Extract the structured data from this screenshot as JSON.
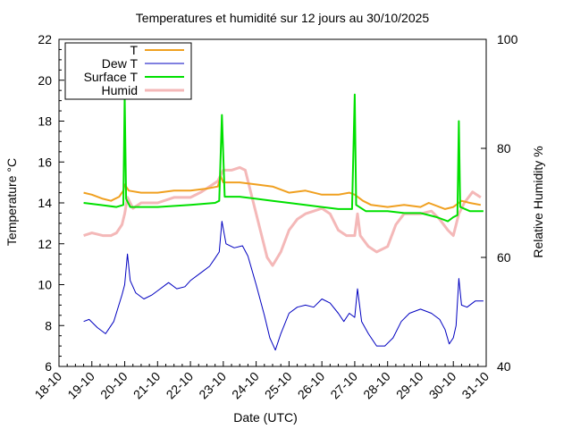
{
  "chart_data": {
    "type": "line",
    "title": "Temperatures et humidité sur 12 jours au 30/10/2025",
    "xlabel": "Date (UTC)",
    "ylabel": "Temperature °C",
    "y2label": "Relative Humidity %",
    "x_range": [
      "2025-10-18",
      "2025-10-31"
    ],
    "ylim": [
      6,
      22
    ],
    "y2lim": [
      40,
      100
    ],
    "y_ticks": [
      "6",
      "8",
      "10",
      "12",
      "14",
      "16",
      "18",
      "20",
      "22"
    ],
    "y2_ticks": [
      "40",
      "60",
      "80",
      "100"
    ],
    "x_ticks": [
      "18-10",
      "19-10",
      "20-10",
      "21-10",
      "22-10",
      "23-10",
      "24-10",
      "25-10",
      "26-10",
      "27-10",
      "28-10",
      "29-10",
      "30-10",
      "31-10"
    ],
    "legend_position": "top-left",
    "series": [
      {
        "name": "T",
        "axis": "left",
        "color": "#f0a020",
        "points": [
          [
            "2025-10-18 18:00",
            14.5
          ],
          [
            "2025-10-19 00:00",
            14.4
          ],
          [
            "2025-10-19 08:00",
            14.2
          ],
          [
            "2025-10-19 14:00",
            14.1
          ],
          [
            "2025-10-19 20:00",
            14.3
          ],
          [
            "2025-10-19 23:00",
            14.6
          ],
          [
            "2025-10-20 00:00",
            14.9
          ],
          [
            "2025-10-20 03:00",
            14.6
          ],
          [
            "2025-10-20 12:00",
            14.5
          ],
          [
            "2025-10-21 00:00",
            14.5
          ],
          [
            "2025-10-21 12:00",
            14.6
          ],
          [
            "2025-10-22 00:00",
            14.6
          ],
          [
            "2025-10-22 12:00",
            14.7
          ],
          [
            "2025-10-22 20:00",
            14.8
          ],
          [
            "2025-10-22 22:00",
            15.3
          ],
          [
            "2025-10-23 00:00",
            15.0
          ],
          [
            "2025-10-23 12:00",
            15.0
          ],
          [
            "2025-10-24 00:00",
            14.9
          ],
          [
            "2025-10-24 12:00",
            14.8
          ],
          [
            "2025-10-25 00:00",
            14.5
          ],
          [
            "2025-10-25 12:00",
            14.6
          ],
          [
            "2025-10-26 00:00",
            14.4
          ],
          [
            "2025-10-26 12:00",
            14.4
          ],
          [
            "2025-10-26 20:00",
            14.5
          ],
          [
            "2025-10-27 00:00",
            14.4
          ],
          [
            "2025-10-27 06:00",
            14.1
          ],
          [
            "2025-10-27 12:00",
            13.9
          ],
          [
            "2025-10-28 00:00",
            13.8
          ],
          [
            "2025-10-28 12:00",
            13.9
          ],
          [
            "2025-10-29 00:00",
            13.8
          ],
          [
            "2025-10-29 06:00",
            14.0
          ],
          [
            "2025-10-29 18:00",
            13.7
          ],
          [
            "2025-10-30 00:00",
            13.8
          ],
          [
            "2025-10-30 02:00",
            13.9
          ],
          [
            "2025-10-30 06:00",
            14.1
          ],
          [
            "2025-10-30 12:00",
            14.0
          ],
          [
            "2025-10-30 20:00",
            13.9
          ]
        ]
      },
      {
        "name": "Dew T",
        "axis": "left",
        "color": "#0000c0",
        "points": [
          [
            "2025-10-18 18:00",
            8.2
          ],
          [
            "2025-10-18 22:00",
            8.3
          ],
          [
            "2025-10-19 04:00",
            7.9
          ],
          [
            "2025-10-19 10:00",
            7.6
          ],
          [
            "2025-10-19 12:00",
            7.8
          ],
          [
            "2025-10-19 16:00",
            8.2
          ],
          [
            "2025-10-19 22:00",
            9.5
          ],
          [
            "2025-10-20 00:00",
            10.0
          ],
          [
            "2025-10-20 02:00",
            11.5
          ],
          [
            "2025-10-20 04:00",
            10.2
          ],
          [
            "2025-10-20 08:00",
            9.6
          ],
          [
            "2025-10-20 14:00",
            9.3
          ],
          [
            "2025-10-20 20:00",
            9.5
          ],
          [
            "2025-10-21 00:00",
            9.7
          ],
          [
            "2025-10-21 08:00",
            10.1
          ],
          [
            "2025-10-21 14:00",
            9.8
          ],
          [
            "2025-10-21 20:00",
            9.9
          ],
          [
            "2025-10-22 00:00",
            10.2
          ],
          [
            "2025-10-22 08:00",
            10.6
          ],
          [
            "2025-10-22 14:00",
            10.9
          ],
          [
            "2025-10-22 18:00",
            11.3
          ],
          [
            "2025-10-22 21:00",
            11.6
          ],
          [
            "2025-10-22 23:00",
            13.1
          ],
          [
            "2025-10-23 02:00",
            12.0
          ],
          [
            "2025-10-23 08:00",
            11.8
          ],
          [
            "2025-10-23 14:00",
            11.9
          ],
          [
            "2025-10-23 18:00",
            11.4
          ],
          [
            "2025-10-24 00:00",
            10.0
          ],
          [
            "2025-10-24 06:00",
            8.5
          ],
          [
            "2025-10-24 10:00",
            7.4
          ],
          [
            "2025-10-24 14:00",
            6.8
          ],
          [
            "2025-10-24 18:00",
            7.6
          ],
          [
            "2025-10-25 00:00",
            8.6
          ],
          [
            "2025-10-25 06:00",
            8.9
          ],
          [
            "2025-10-25 12:00",
            9.0
          ],
          [
            "2025-10-25 18:00",
            8.9
          ],
          [
            "2025-10-26 00:00",
            9.3
          ],
          [
            "2025-10-26 06:00",
            9.1
          ],
          [
            "2025-10-26 12:00",
            8.6
          ],
          [
            "2025-10-26 16:00",
            8.2
          ],
          [
            "2025-10-26 20:00",
            8.6
          ],
          [
            "2025-10-27 00:00",
            8.4
          ],
          [
            "2025-10-27 02:00",
            9.8
          ],
          [
            "2025-10-27 05:00",
            8.2
          ],
          [
            "2025-10-27 10:00",
            7.6
          ],
          [
            "2025-10-27 16:00",
            7.0
          ],
          [
            "2025-10-27 22:00",
            7.0
          ],
          [
            "2025-10-28 04:00",
            7.4
          ],
          [
            "2025-10-28 10:00",
            8.2
          ],
          [
            "2025-10-28 16:00",
            8.6
          ],
          [
            "2025-10-29 00:00",
            8.8
          ],
          [
            "2025-10-29 08:00",
            8.6
          ],
          [
            "2025-10-29 14:00",
            8.3
          ],
          [
            "2025-10-29 18:00",
            7.8
          ],
          [
            "2025-10-29 21:00",
            7.1
          ],
          [
            "2025-10-30 00:00",
            7.4
          ],
          [
            "2025-10-30 02:00",
            8.0
          ],
          [
            "2025-10-30 04:00",
            10.3
          ],
          [
            "2025-10-30 06:00",
            9.0
          ],
          [
            "2025-10-30 10:00",
            8.9
          ],
          [
            "2025-10-30 16:00",
            9.2
          ],
          [
            "2025-10-30 22:00",
            9.2
          ]
        ]
      },
      {
        "name": "Surface T",
        "axis": "left",
        "color": "#00e000",
        "points": [
          [
            "2025-10-18 18:00",
            14.0
          ],
          [
            "2025-10-19 06:00",
            13.9
          ],
          [
            "2025-10-19 18:00",
            13.8
          ],
          [
            "2025-10-19 23:00",
            13.9
          ],
          [
            "2025-10-20 00:00",
            19.2
          ],
          [
            "2025-10-20 01:00",
            14.2
          ],
          [
            "2025-10-20 04:00",
            13.8
          ],
          [
            "2025-10-21 00:00",
            13.8
          ],
          [
            "2025-10-22 00:00",
            13.9
          ],
          [
            "2025-10-22 18:00",
            14.0
          ],
          [
            "2025-10-22 21:00",
            14.1
          ],
          [
            "2025-10-22 23:00",
            18.3
          ],
          [
            "2025-10-23 01:00",
            14.3
          ],
          [
            "2025-10-23 12:00",
            14.3
          ],
          [
            "2025-10-24 00:00",
            14.2
          ],
          [
            "2025-10-24 12:00",
            14.1
          ],
          [
            "2025-10-25 00:00",
            14.0
          ],
          [
            "2025-10-26 00:00",
            13.8
          ],
          [
            "2025-10-26 12:00",
            13.7
          ],
          [
            "2025-10-26 22:00",
            13.7
          ],
          [
            "2025-10-27 00:00",
            19.3
          ],
          [
            "2025-10-27 01:00",
            13.9
          ],
          [
            "2025-10-27 08:00",
            13.6
          ],
          [
            "2025-10-28 00:00",
            13.6
          ],
          [
            "2025-10-28 12:00",
            13.5
          ],
          [
            "2025-10-29 00:00",
            13.5
          ],
          [
            "2025-10-29 12:00",
            13.3
          ],
          [
            "2025-10-29 20:00",
            13.1
          ],
          [
            "2025-10-30 00:00",
            13.3
          ],
          [
            "2025-10-30 03:00",
            13.4
          ],
          [
            "2025-10-30 04:00",
            18.0
          ],
          [
            "2025-10-30 05:00",
            13.8
          ],
          [
            "2025-10-30 12:00",
            13.6
          ],
          [
            "2025-10-30 22:00",
            13.6
          ]
        ]
      },
      {
        "name": "Humid",
        "axis": "right",
        "color": "#f4b8b8",
        "points": [
          [
            "2025-10-18 18:00",
            64
          ],
          [
            "2025-10-19 00:00",
            64.5
          ],
          [
            "2025-10-19 08:00",
            64
          ],
          [
            "2025-10-19 14:00",
            64
          ],
          [
            "2025-10-19 18:00",
            64.5
          ],
          [
            "2025-10-19 22:00",
            66
          ],
          [
            "2025-10-20 00:00",
            68
          ],
          [
            "2025-10-20 02:00",
            71
          ],
          [
            "2025-10-20 06:00",
            69
          ],
          [
            "2025-10-20 12:00",
            70
          ],
          [
            "2025-10-21 00:00",
            70
          ],
          [
            "2025-10-21 12:00",
            71
          ],
          [
            "2025-10-22 00:00",
            71
          ],
          [
            "2025-10-22 08:00",
            72
          ],
          [
            "2025-10-22 14:00",
            73
          ],
          [
            "2025-10-22 20:00",
            74
          ],
          [
            "2025-10-23 00:00",
            76
          ],
          [
            "2025-10-23 06:00",
            76
          ],
          [
            "2025-10-23 12:00",
            76.5
          ],
          [
            "2025-10-23 16:00",
            76
          ],
          [
            "2025-10-23 20:00",
            72
          ],
          [
            "2025-10-24 02:00",
            66
          ],
          [
            "2025-10-24 08:00",
            60
          ],
          [
            "2025-10-24 12:00",
            58.5
          ],
          [
            "2025-10-24 18:00",
            61
          ],
          [
            "2025-10-25 00:00",
            65
          ],
          [
            "2025-10-25 06:00",
            67
          ],
          [
            "2025-10-25 12:00",
            68
          ],
          [
            "2025-10-25 18:00",
            68.5
          ],
          [
            "2025-10-26 00:00",
            69
          ],
          [
            "2025-10-26 06:00",
            68
          ],
          [
            "2025-10-26 12:00",
            65
          ],
          [
            "2025-10-26 18:00",
            64
          ],
          [
            "2025-10-27 00:00",
            64
          ],
          [
            "2025-10-27 02:00",
            68
          ],
          [
            "2025-10-27 04:00",
            64
          ],
          [
            "2025-10-27 10:00",
            62
          ],
          [
            "2025-10-27 16:00",
            61
          ],
          [
            "2025-10-28 00:00",
            62
          ],
          [
            "2025-10-28 06:00",
            66
          ],
          [
            "2025-10-28 12:00",
            68
          ],
          [
            "2025-10-29 00:00",
            68
          ],
          [
            "2025-10-29 08:00",
            68.5
          ],
          [
            "2025-10-29 14:00",
            67
          ],
          [
            "2025-10-29 20:00",
            65
          ],
          [
            "2025-10-30 00:00",
            64
          ],
          [
            "2025-10-30 04:00",
            68
          ],
          [
            "2025-10-30 08:00",
            70
          ],
          [
            "2025-10-30 14:00",
            72
          ],
          [
            "2025-10-30 20:00",
            71
          ]
        ]
      }
    ]
  }
}
